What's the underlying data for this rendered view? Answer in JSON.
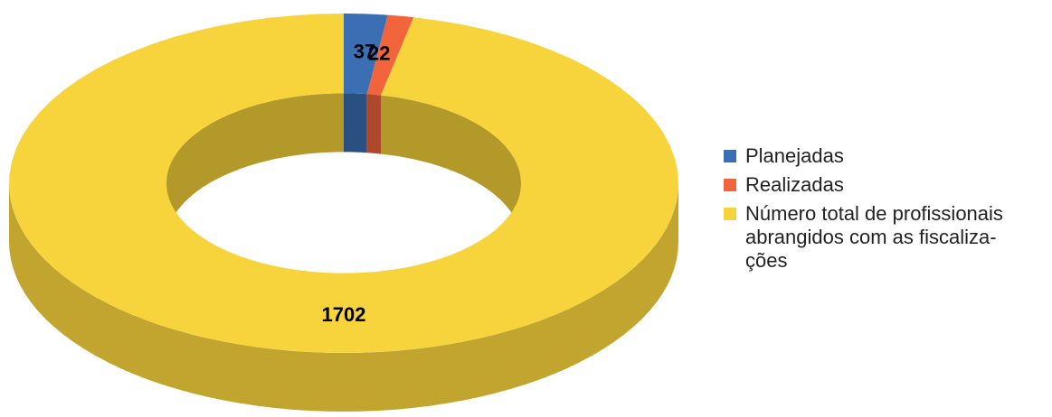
{
  "chart_data": {
    "type": "pie",
    "variant": "3d-donut",
    "categories": [
      "Planejadas",
      "Realizadas",
      "Número total de profissionais abrangidos com as fiscalizações"
    ],
    "values": [
      37,
      22,
      1702
    ],
    "data_labels": [
      "37",
      "22",
      "1702"
    ],
    "colors": [
      "#3a6fb3",
      "#f2643c",
      "#f7d43b"
    ],
    "legend": {
      "position": "right",
      "items": [
        {
          "label": "Planejadas",
          "color": "#3a6fb3"
        },
        {
          "label": "Realizadas",
          "color": "#f2643c"
        },
        {
          "label": "Número total de profissionais\nabrangidos com as fiscaliza-\nções",
          "color": "#f7d43b"
        }
      ]
    }
  }
}
